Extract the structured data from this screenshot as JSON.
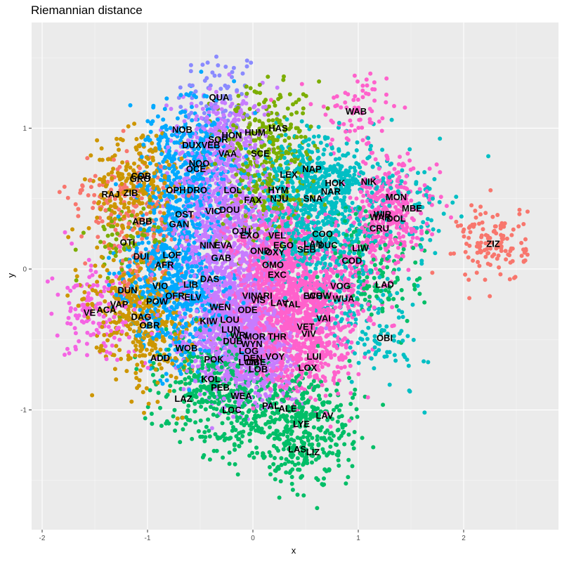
{
  "chart_data": {
    "type": "scatter",
    "title": "Riemannian distance",
    "xlabel": "x",
    "ylabel": "y",
    "xlim": [
      -2.1,
      2.9
    ],
    "ylim": [
      -1.85,
      1.75
    ],
    "x_ticks": [
      -2,
      -1,
      0,
      1,
      2
    ],
    "x_tick_labels": [
      "-2",
      "-1",
      "0",
      "1",
      "2"
    ],
    "y_ticks": [
      -1,
      0,
      1
    ],
    "y_tick_labels": [
      "-1",
      "0",
      "1"
    ],
    "grid": true,
    "legend": "none",
    "palette": [
      "#F8766D",
      "#CD9600",
      "#7CAE00",
      "#00BE67",
      "#00BFC4",
      "#00A9FF",
      "#C77CFF",
      "#FF61CC",
      "#8A8AFF",
      "#F564E3"
    ],
    "labels": [
      {
        "text": "QUA",
        "x": -0.32,
        "y": 1.22,
        "c": 8
      },
      {
        "text": "WAB",
        "x": 0.98,
        "y": 1.12,
        "c": 7
      },
      {
        "text": "NOB",
        "x": -0.67,
        "y": 0.99,
        "c": 5
      },
      {
        "text": "HUM",
        "x": 0.02,
        "y": 0.97,
        "c": 2
      },
      {
        "text": "HAS",
        "x": 0.24,
        "y": 1.0,
        "c": 2
      },
      {
        "text": "HON",
        "x": -0.2,
        "y": 0.95,
        "c": 6
      },
      {
        "text": "SOR",
        "x": -0.33,
        "y": 0.92,
        "c": 6
      },
      {
        "text": "DUX",
        "x": -0.58,
        "y": 0.88,
        "c": 5
      },
      {
        "text": "VEB",
        "x": -0.4,
        "y": 0.88,
        "c": 6
      },
      {
        "text": "VAA",
        "x": -0.24,
        "y": 0.82,
        "c": 6
      },
      {
        "text": "SCE",
        "x": 0.07,
        "y": 0.82,
        "c": 2
      },
      {
        "text": "NOO",
        "x": -0.51,
        "y": 0.75,
        "c": 5
      },
      {
        "text": "OCE",
        "x": -0.54,
        "y": 0.71,
        "c": 5
      },
      {
        "text": "NAP",
        "x": 0.56,
        "y": 0.71,
        "c": 4
      },
      {
        "text": "COB",
        "x": -1.06,
        "y": 0.66,
        "c": 1
      },
      {
        "text": "LEX",
        "x": 0.34,
        "y": 0.67,
        "c": 4
      },
      {
        "text": "GRO",
        "x": -1.07,
        "y": 0.64,
        "c": 1
      },
      {
        "text": "NIK",
        "x": 1.1,
        "y": 0.62,
        "c": 4
      },
      {
        "text": "HOK",
        "x": 0.78,
        "y": 0.61,
        "c": 4
      },
      {
        "text": "RAJ",
        "x": -1.35,
        "y": 0.53,
        "c": 0
      },
      {
        "text": "ZIB",
        "x": -1.16,
        "y": 0.54,
        "c": 1
      },
      {
        "text": "OPH",
        "x": -0.73,
        "y": 0.56,
        "c": 5
      },
      {
        "text": "DRO",
        "x": -0.53,
        "y": 0.56,
        "c": 6
      },
      {
        "text": "LOL",
        "x": -0.19,
        "y": 0.56,
        "c": 6
      },
      {
        "text": "HYM",
        "x": 0.24,
        "y": 0.56,
        "c": 2
      },
      {
        "text": "NAR",
        "x": 0.74,
        "y": 0.55,
        "c": 4
      },
      {
        "text": "NJU",
        "x": 0.25,
        "y": 0.5,
        "c": 4
      },
      {
        "text": "FAX",
        "x": 0.0,
        "y": 0.49,
        "c": 2
      },
      {
        "text": "SNA",
        "x": 0.57,
        "y": 0.5,
        "c": 4
      },
      {
        "text": "MON",
        "x": 1.36,
        "y": 0.51,
        "c": 7
      },
      {
        "text": "MBE",
        "x": 1.51,
        "y": 0.43,
        "c": 4
      },
      {
        "text": "DOU",
        "x": -0.22,
        "y": 0.42,
        "c": 6
      },
      {
        "text": "VIC",
        "x": -0.38,
        "y": 0.41,
        "c": 6
      },
      {
        "text": "OST",
        "x": -0.65,
        "y": 0.39,
        "c": 5
      },
      {
        "text": "WIR",
        "x": 1.23,
        "y": 0.39,
        "c": 7
      },
      {
        "text": "WAR",
        "x": 1.21,
        "y": 0.37,
        "c": 7
      },
      {
        "text": "DOL",
        "x": 1.36,
        "y": 0.36,
        "c": 7
      },
      {
        "text": "ABB",
        "x": -1.05,
        "y": 0.34,
        "c": 0
      },
      {
        "text": "GAN",
        "x": -0.7,
        "y": 0.32,
        "c": 5
      },
      {
        "text": "CRU",
        "x": 1.2,
        "y": 0.29,
        "c": 7
      },
      {
        "text": "OJU",
        "x": -0.11,
        "y": 0.27,
        "c": 6
      },
      {
        "text": "EXO",
        "x": -0.03,
        "y": 0.24,
        "c": 6
      },
      {
        "text": "VEL",
        "x": 0.23,
        "y": 0.24,
        "c": 7
      },
      {
        "text": "COO",
        "x": 0.66,
        "y": 0.25,
        "c": 4
      },
      {
        "text": "OTI",
        "x": -1.19,
        "y": 0.19,
        "c": 2
      },
      {
        "text": "EGO",
        "x": 0.29,
        "y": 0.17,
        "c": 7
      },
      {
        "text": "LAN",
        "x": 0.57,
        "y": 0.18,
        "c": 4
      },
      {
        "text": "DUC",
        "x": 0.71,
        "y": 0.17,
        "c": 4
      },
      {
        "text": "ZIZ",
        "x": 2.28,
        "y": 0.18,
        "c": 0
      },
      {
        "text": "NIN",
        "x": -0.43,
        "y": 0.17,
        "c": 6
      },
      {
        "text": "EVA",
        "x": -0.28,
        "y": 0.17,
        "c": 6
      },
      {
        "text": "SEB",
        "x": 0.51,
        "y": 0.14,
        "c": 4
      },
      {
        "text": "LIW",
        "x": 1.02,
        "y": 0.15,
        "c": 3
      },
      {
        "text": "OND",
        "x": 0.07,
        "y": 0.13,
        "c": 7
      },
      {
        "text": "OXY",
        "x": 0.21,
        "y": 0.12,
        "c": 7
      },
      {
        "text": "DUI",
        "x": -1.06,
        "y": 0.09,
        "c": 0
      },
      {
        "text": "LOF",
        "x": -0.77,
        "y": 0.1,
        "c": 5
      },
      {
        "text": "GAB",
        "x": -0.3,
        "y": 0.08,
        "c": 6
      },
      {
        "text": "COD",
        "x": 0.94,
        "y": 0.06,
        "c": 7
      },
      {
        "text": "AFR",
        "x": -0.84,
        "y": 0.03,
        "c": 5
      },
      {
        "text": "OMO",
        "x": 0.19,
        "y": 0.03,
        "c": 7
      },
      {
        "text": "EXC",
        "x": 0.23,
        "y": -0.04,
        "c": 7
      },
      {
        "text": "DAS",
        "x": -0.41,
        "y": -0.07,
        "c": 6
      },
      {
        "text": "LIB",
        "x": -0.59,
        "y": -0.11,
        "c": 5
      },
      {
        "text": "LAD",
        "x": 1.25,
        "y": -0.11,
        "c": 3
      },
      {
        "text": "VOG",
        "x": 0.83,
        "y": -0.12,
        "c": 7
      },
      {
        "text": "DUN",
        "x": -1.19,
        "y": -0.15,
        "c": 1
      },
      {
        "text": "VIO",
        "x": -0.88,
        "y": -0.12,
        "c": 5
      },
      {
        "text": "OFR",
        "x": -0.74,
        "y": -0.19,
        "c": 5
      },
      {
        "text": "ELV",
        "x": -0.57,
        "y": -0.2,
        "c": 5
      },
      {
        "text": "VIN",
        "x": -0.03,
        "y": -0.19,
        "c": 6
      },
      {
        "text": "ARI",
        "x": 0.11,
        "y": -0.19,
        "c": 7
      },
      {
        "text": "ECH",
        "x": 0.57,
        "y": -0.19,
        "c": 7
      },
      {
        "text": "WOW",
        "x": 0.63,
        "y": -0.19,
        "c": 7
      },
      {
        "text": "WUA",
        "x": 0.86,
        "y": -0.21,
        "c": 4
      },
      {
        "text": "POW",
        "x": -0.91,
        "y": -0.23,
        "c": 5
      },
      {
        "text": "VAP",
        "x": -1.27,
        "y": -0.25,
        "c": 1
      },
      {
        "text": "VIS",
        "x": 0.05,
        "y": -0.22,
        "c": 7
      },
      {
        "text": "LAV",
        "x": 0.25,
        "y": -0.24,
        "c": 7
      },
      {
        "text": "TAL",
        "x": 0.37,
        "y": -0.25,
        "c": 7
      },
      {
        "text": "WEN",
        "x": -0.31,
        "y": -0.27,
        "c": 6
      },
      {
        "text": "ODE",
        "x": -0.05,
        "y": -0.29,
        "c": 6
      },
      {
        "text": "ACA",
        "x": -1.39,
        "y": -0.29,
        "c": 9
      },
      {
        "text": "VE",
        "x": -1.55,
        "y": -0.31,
        "c": 9
      },
      {
        "text": "DAG",
        "x": -1.06,
        "y": -0.34,
        "c": 1
      },
      {
        "text": "LOU",
        "x": -0.22,
        "y": -0.36,
        "c": 6
      },
      {
        "text": "VAI",
        "x": 0.67,
        "y": -0.35,
        "c": 7
      },
      {
        "text": "KIW",
        "x": -0.42,
        "y": -0.37,
        "c": 6
      },
      {
        "text": "OBR",
        "x": -0.98,
        "y": -0.4,
        "c": 1
      },
      {
        "text": "LUN",
        "x": -0.21,
        "y": -0.43,
        "c": 6
      },
      {
        "text": "VET",
        "x": 0.5,
        "y": -0.41,
        "c": 7
      },
      {
        "text": "VIV",
        "x": 0.53,
        "y": -0.46,
        "c": 7
      },
      {
        "text": "WRI",
        "x": -0.13,
        "y": -0.47,
        "c": 6
      },
      {
        "text": "MOR",
        "x": 0.02,
        "y": -0.48,
        "c": 6
      },
      {
        "text": "THR",
        "x": 0.23,
        "y": -0.48,
        "c": 7
      },
      {
        "text": "OBI",
        "x": 1.25,
        "y": -0.49,
        "c": 4
      },
      {
        "text": "DUB",
        "x": -0.19,
        "y": -0.51,
        "c": 6
      },
      {
        "text": "WYN",
        "x": -0.01,
        "y": -0.53,
        "c": 6
      },
      {
        "text": "WOB",
        "x": -0.63,
        "y": -0.56,
        "c": 5
      },
      {
        "text": "LOG",
        "x": -0.04,
        "y": -0.58,
        "c": 6
      },
      {
        "text": "ADD",
        "x": -0.88,
        "y": -0.63,
        "c": 1
      },
      {
        "text": "POK",
        "x": -0.37,
        "y": -0.64,
        "c": 6
      },
      {
        "text": "DEN",
        "x": 0.0,
        "y": -0.63,
        "c": 6
      },
      {
        "text": "VOY",
        "x": 0.21,
        "y": -0.62,
        "c": 7
      },
      {
        "text": "LUI",
        "x": 0.58,
        "y": -0.62,
        "c": 7
      },
      {
        "text": "LOM",
        "x": -0.04,
        "y": -0.66,
        "c": 6
      },
      {
        "text": "OBE",
        "x": 0.03,
        "y": -0.66,
        "c": 6
      },
      {
        "text": "LOB",
        "x": 0.05,
        "y": -0.71,
        "c": 6
      },
      {
        "text": "LOX",
        "x": 0.52,
        "y": -0.7,
        "c": 7
      },
      {
        "text": "KOL",
        "x": -0.4,
        "y": -0.78,
        "c": 3
      },
      {
        "text": "PEB",
        "x": -0.31,
        "y": -0.84,
        "c": 3
      },
      {
        "text": "WEA",
        "x": -0.11,
        "y": -0.9,
        "c": 3
      },
      {
        "text": "LAZ",
        "x": -0.66,
        "y": -0.92,
        "c": 3
      },
      {
        "text": "PAL",
        "x": 0.17,
        "y": -0.97,
        "c": 3
      },
      {
        "text": "ALE",
        "x": 0.33,
        "y": -0.99,
        "c": 3
      },
      {
        "text": "LOC",
        "x": -0.2,
        "y": -1.0,
        "c": 3
      },
      {
        "text": "LAV",
        "x": 0.68,
        "y": -1.04,
        "c": 3
      },
      {
        "text": "LYE",
        "x": 0.46,
        "y": -1.1,
        "c": 3
      },
      {
        "text": "LAS",
        "x": 0.42,
        "y": -1.28,
        "c": 3
      },
      {
        "text": "LIZ",
        "x": 0.57,
        "y": -1.3,
        "c": 3
      }
    ]
  }
}
